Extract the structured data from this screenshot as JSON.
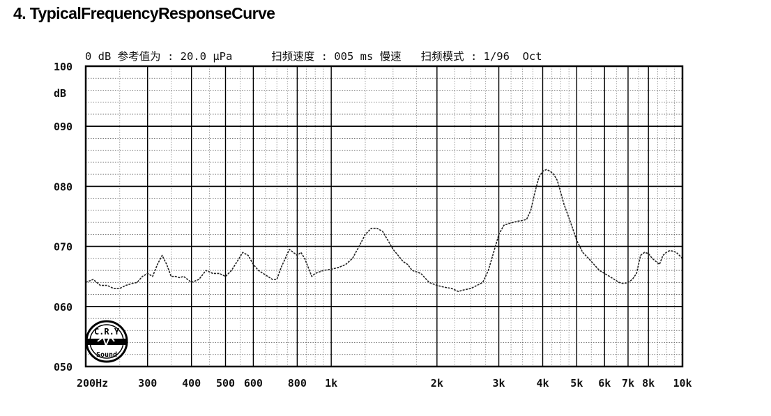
{
  "page": {
    "heading": "4. TypicalFrequencyResponseCurve"
  },
  "chart_data": {
    "type": "line",
    "title": "0 dB 参考值为 : 20.0 μPa      扫频速度 : 005 ms 慢速   扫频模式 : 1/96  Oct",
    "ylabel": "dB",
    "ylim": [
      50,
      100
    ],
    "xlim": [
      200,
      10000
    ],
    "x_scale": "log",
    "grid": true,
    "y_ticks": [
      {
        "value": 100,
        "label": "100"
      },
      {
        "value": 90,
        "label": "090"
      },
      {
        "value": 80,
        "label": "080"
      },
      {
        "value": 70,
        "label": "070"
      },
      {
        "value": 60,
        "label": "060"
      },
      {
        "value": 50,
        "label": "050"
      }
    ],
    "x_ticks": [
      {
        "value": 200,
        "label": "200Hz"
      },
      {
        "value": 300,
        "label": "300"
      },
      {
        "value": 400,
        "label": "400"
      },
      {
        "value": 500,
        "label": "500"
      },
      {
        "value": 600,
        "label": "600"
      },
      {
        "value": 800,
        "label": "800"
      },
      {
        "value": 1000,
        "label": "1k"
      },
      {
        "value": 2000,
        "label": "2k"
      },
      {
        "value": 3000,
        "label": "3k"
      },
      {
        "value": 4000,
        "label": "4k"
      },
      {
        "value": 5000,
        "label": "5k"
      },
      {
        "value": 6000,
        "label": "6k"
      },
      {
        "value": 7000,
        "label": "7k"
      },
      {
        "value": 8000,
        "label": "8k"
      },
      {
        "value": 10000,
        "label": "10k"
      }
    ],
    "series": [
      {
        "x": [
          200,
          210,
          220,
          230,
          240,
          250,
          260,
          270,
          280,
          290,
          300,
          310,
          320,
          330,
          340,
          350,
          360,
          370,
          380,
          390,
          400,
          420,
          440,
          460,
          480,
          500,
          520,
          540,
          560,
          580,
          600,
          620,
          640,
          660,
          680,
          700,
          720,
          740,
          760,
          780,
          800,
          820,
          840,
          860,
          880,
          900,
          950,
          1000,
          1050,
          1100,
          1150,
          1200,
          1250,
          1300,
          1350,
          1400,
          1450,
          1500,
          1550,
          1600,
          1650,
          1700,
          1800,
          1900,
          2000,
          2100,
          2200,
          2300,
          2400,
          2500,
          2600,
          2700,
          2800,
          2900,
          3000,
          3100,
          3200,
          3300,
          3400,
          3500,
          3600,
          3700,
          3800,
          3900,
          4000,
          4100,
          4200,
          4300,
          4400,
          4500,
          4600,
          4700,
          4800,
          4900,
          5000,
          5200,
          5400,
          5600,
          5800,
          6000,
          6200,
          6400,
          6600,
          6800,
          7000,
          7200,
          7400,
          7600,
          7800,
          8000,
          8200,
          8400,
          8600,
          8800,
          9000,
          9200,
          9400,
          9600,
          9800,
          10000
        ],
        "y": [
          64.0,
          64.5,
          63.5,
          63.5,
          63.0,
          63.0,
          63.5,
          63.8,
          64.0,
          65.0,
          65.5,
          65.0,
          67.0,
          68.5,
          67.0,
          65.0,
          65.0,
          64.8,
          65.0,
          64.5,
          64.0,
          64.5,
          66.0,
          65.5,
          65.5,
          65.0,
          66.0,
          67.5,
          69.0,
          68.5,
          67.0,
          66.0,
          65.5,
          65.0,
          64.5,
          64.5,
          66.5,
          68.0,
          69.5,
          69.0,
          68.5,
          69.0,
          68.0,
          66.5,
          65.0,
          65.5,
          66.0,
          66.2,
          66.5,
          67.0,
          68.0,
          70.0,
          72.0,
          73.0,
          73.0,
          72.5,
          71.0,
          69.5,
          68.5,
          67.5,
          67.0,
          66.0,
          65.5,
          64.0,
          63.5,
          63.2,
          63.0,
          62.5,
          62.8,
          63.0,
          63.5,
          64.0,
          66.0,
          69.0,
          72.0,
          73.5,
          73.8,
          74.0,
          74.2,
          74.3,
          74.5,
          76.0,
          79.0,
          81.5,
          82.5,
          82.8,
          82.5,
          82.0,
          81.0,
          79.0,
          77.0,
          75.5,
          74.0,
          72.5,
          71.0,
          69.0,
          68.0,
          67.0,
          66.0,
          65.5,
          65.0,
          64.5,
          64.0,
          63.8,
          64.0,
          64.5,
          65.5,
          68.5,
          69.0,
          68.8,
          68.0,
          67.5,
          67.0,
          68.5,
          69.0,
          69.3,
          69.2,
          69.0,
          68.5,
          68.0
        ]
      }
    ]
  },
  "logo": {
    "top_text": "C.R.Y",
    "bottom_text": "Sound"
  }
}
